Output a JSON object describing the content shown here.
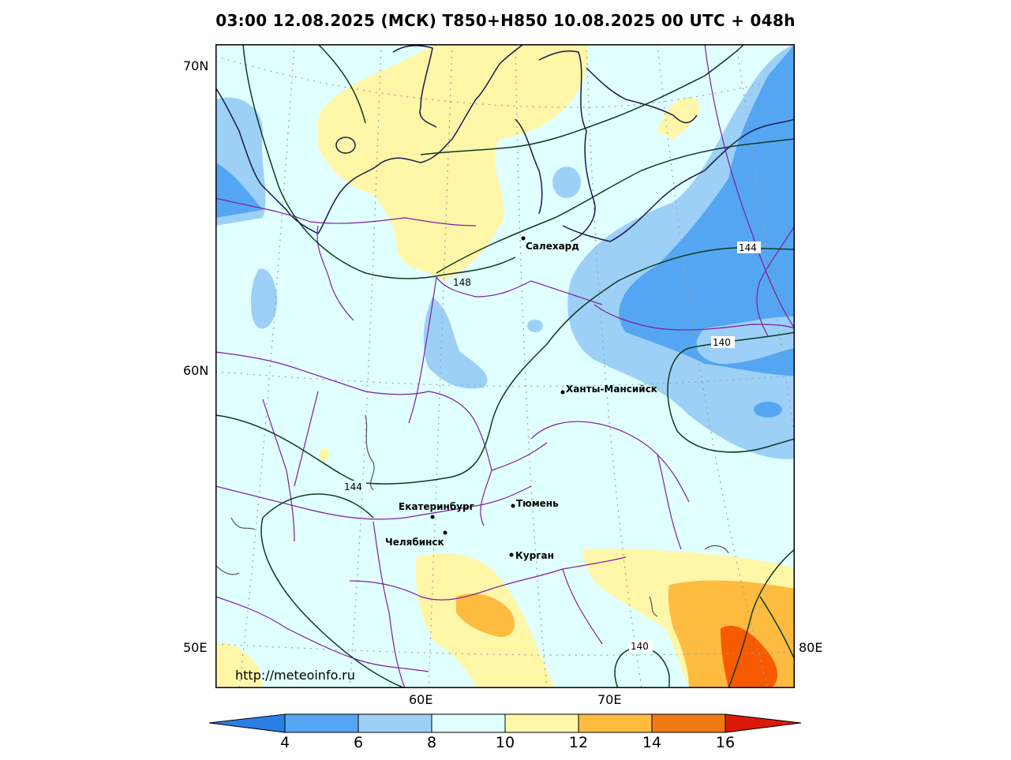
{
  "title": "03:00 12.08.2025 (МСК) T850+H850 10.08.2025 00 UTC + 048h",
  "source_url": "http://meteoinfo.ru",
  "axes": {
    "lat_labels": [
      "70N",
      "60N",
      "50E"
    ],
    "lon_labels": [
      "60E",
      "70E",
      "80E"
    ]
  },
  "cities": [
    {
      "name": "Салехард"
    },
    {
      "name": "Ханты-Мансийск"
    },
    {
      "name": "Екатеринбург"
    },
    {
      "name": "Тюмень"
    },
    {
      "name": "Челябинск"
    },
    {
      "name": "Курган"
    }
  ],
  "contour_labels": [
    "148",
    "144",
    "140",
    "144",
    "140"
  ],
  "colorbar": {
    "ticks": [
      "4",
      "6",
      "8",
      "10",
      "12",
      "14",
      "16"
    ],
    "colors": [
      "#2a7fe6",
      "#55a6f2",
      "#9dd0f7",
      "#e0ffff",
      "#fff6a8",
      "#fdbb40",
      "#f27a12",
      "#f75a00",
      "#dc1a0a"
    ]
  },
  "colors": {
    "border": "#7f1f9f",
    "coast": "#1a1a4a",
    "contour": "#0f3a1f",
    "grid": "#a0a0a0"
  }
}
